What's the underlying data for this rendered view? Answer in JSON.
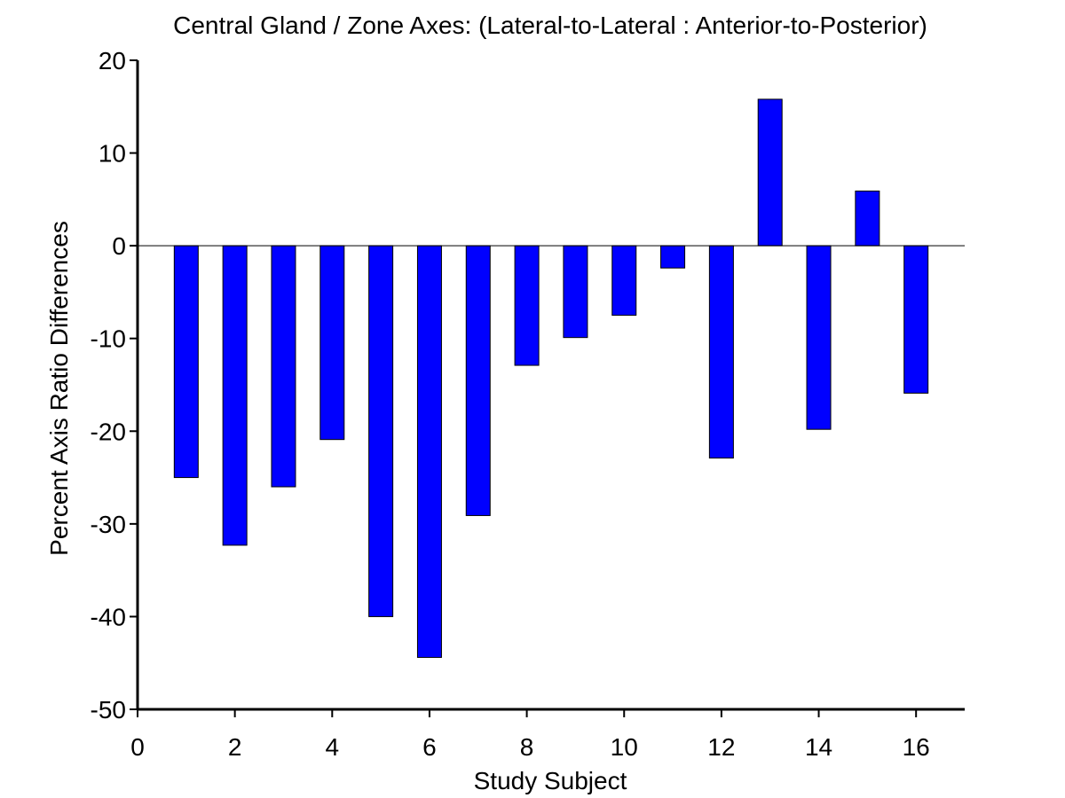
{
  "chart_data": {
    "type": "bar",
    "title": "Central Gland / Zone Axes: (Lateral-to-Lateral : Anterior-to-Posterior)",
    "xlabel": "Study Subject",
    "ylabel": "Percent Axis Ratio Differences",
    "x": [
      1,
      2,
      3,
      4,
      5,
      6,
      7,
      8,
      9,
      10,
      11,
      12,
      13,
      14,
      15,
      16
    ],
    "values": [
      -25,
      -32.3,
      -26,
      -20.9,
      -40,
      -44.4,
      -29.1,
      -12.9,
      -9.9,
      -7.5,
      -2.4,
      -22.9,
      15.8,
      -19.8,
      5.9,
      -15.9
    ],
    "xlim": [
      0,
      17
    ],
    "ylim": [
      -50,
      20
    ],
    "xticks": [
      0,
      2,
      4,
      6,
      8,
      10,
      12,
      14,
      16
    ],
    "yticks": [
      -50,
      -40,
      -30,
      -20,
      -10,
      0,
      10,
      20
    ],
    "bar_color": "#0000ff",
    "zero_line": true,
    "grid": false
  }
}
